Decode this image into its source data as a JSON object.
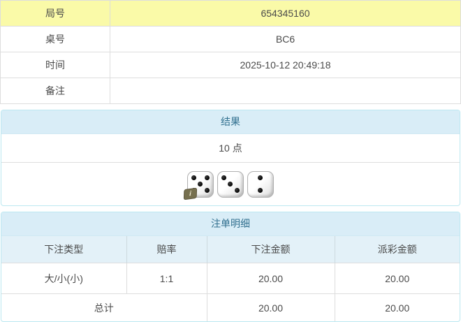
{
  "info_table": {
    "rows": [
      {
        "label": "局号",
        "value": "654345160",
        "highlight": true
      },
      {
        "label": "桌号",
        "value": "BC6",
        "highlight": false
      },
      {
        "label": "时间",
        "value": "2025-10-12 20:49:18",
        "highlight": false
      },
      {
        "label": "备注",
        "value": "",
        "highlight": false
      }
    ]
  },
  "result_panel": {
    "title": "结果",
    "points": "10 点",
    "dice": [
      5,
      3,
      2
    ],
    "info_badge": "i"
  },
  "bets_panel": {
    "title": "注单明细",
    "columns": [
      "下注类型",
      "赔率",
      "下注金额",
      "派彩金额"
    ],
    "rows": [
      {
        "bet_type": "大/小(小)",
        "odds": "1:1",
        "bet_amount": "20.00",
        "payout": "20.00"
      }
    ],
    "total": {
      "label": "总计",
      "bet_amount": "20.00",
      "payout": "20.00"
    }
  },
  "colors": {
    "highlight_yellow": "#fafaa8",
    "panel_heading_bg": "#d9edf7",
    "panel_border": "#bce8f1",
    "heading_text": "#31708f",
    "odds_red": "#e33333",
    "body_text": "#4a4a4a"
  }
}
